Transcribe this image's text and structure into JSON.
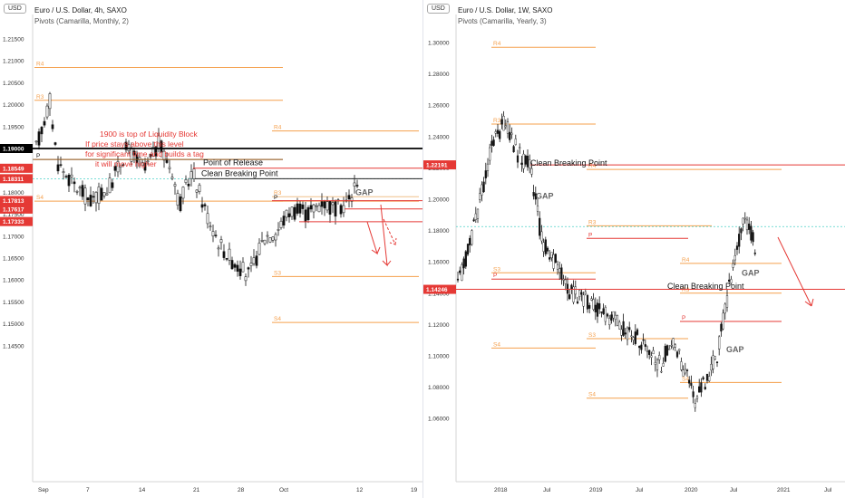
{
  "left": {
    "title": "Euro / U.S. Dollar, 4h, SAXO",
    "subtitle": "Pivots (Camarilla, Monthly, 2)",
    "currency": "USD",
    "y_ticks": [
      "1.21500",
      "1.21000",
      "1.20500",
      "1.20000",
      "1.19500",
      "1.19000",
      "1.18500",
      "1.18000",
      "1.17500",
      "1.17000",
      "1.16500",
      "1.16000",
      "1.15500",
      "1.15000",
      "1.14500"
    ],
    "x_ticks": [
      "Sep",
      "7",
      "14",
      "21",
      "28",
      "Oct",
      "12",
      "19"
    ],
    "price_tags": [
      "1.19000",
      "1.18549",
      "1.18311",
      "1.17813",
      "1.17617",
      "1.17333"
    ],
    "note": [
      "1900 is top of Liquidity Block",
      "If price stays above this level",
      "for significant time and builds a tag",
      "it will move higher"
    ],
    "annotations": {
      "por": "Point of Release",
      "cbp": "Clean Breaking Point",
      "gap": "GAP"
    },
    "pivot_labels": [
      "R4",
      "R3",
      "R4",
      "P",
      "S4",
      "R3",
      "P",
      "S3",
      "S4"
    ]
  },
  "right": {
    "title": "Euro / U.S. Dollar, 1W, SAXO",
    "subtitle": "Pivots (Camarilla, Yearly, 3)",
    "currency": "USD",
    "y_ticks": [
      "1.30000",
      "1.28000",
      "1.26000",
      "1.24000",
      "1.22000",
      "1.20000",
      "1.18000",
      "1.16000",
      "1.14000",
      "1.12000",
      "1.10000",
      "1.08000",
      "1.06000"
    ],
    "x_ticks": [
      "2018",
      "Jul",
      "2019",
      "Jul",
      "2020",
      "Jul",
      "2021",
      "Jul"
    ],
    "price_tags": [
      "1.22191",
      "1.14246"
    ],
    "annotations": {
      "cbp1": "Clean Breaking Point",
      "cbp2": "Clean Breaking Point",
      "gap1": "GAP",
      "gap2": "GAP",
      "gap3": "GAP"
    },
    "pivot_labels": [
      "R4",
      "R3",
      "R4",
      "R3",
      "P",
      "R4",
      "S3",
      "P",
      "R3",
      "P",
      "S3",
      "S4",
      "S4",
      "S4"
    ]
  },
  "colors": {
    "red": "#e53935",
    "orange": "#f5a04d",
    "black": "#000000",
    "teal": "#4dd0c8",
    "candle_dark": "#111111",
    "candle_light": "#ffffff"
  }
}
